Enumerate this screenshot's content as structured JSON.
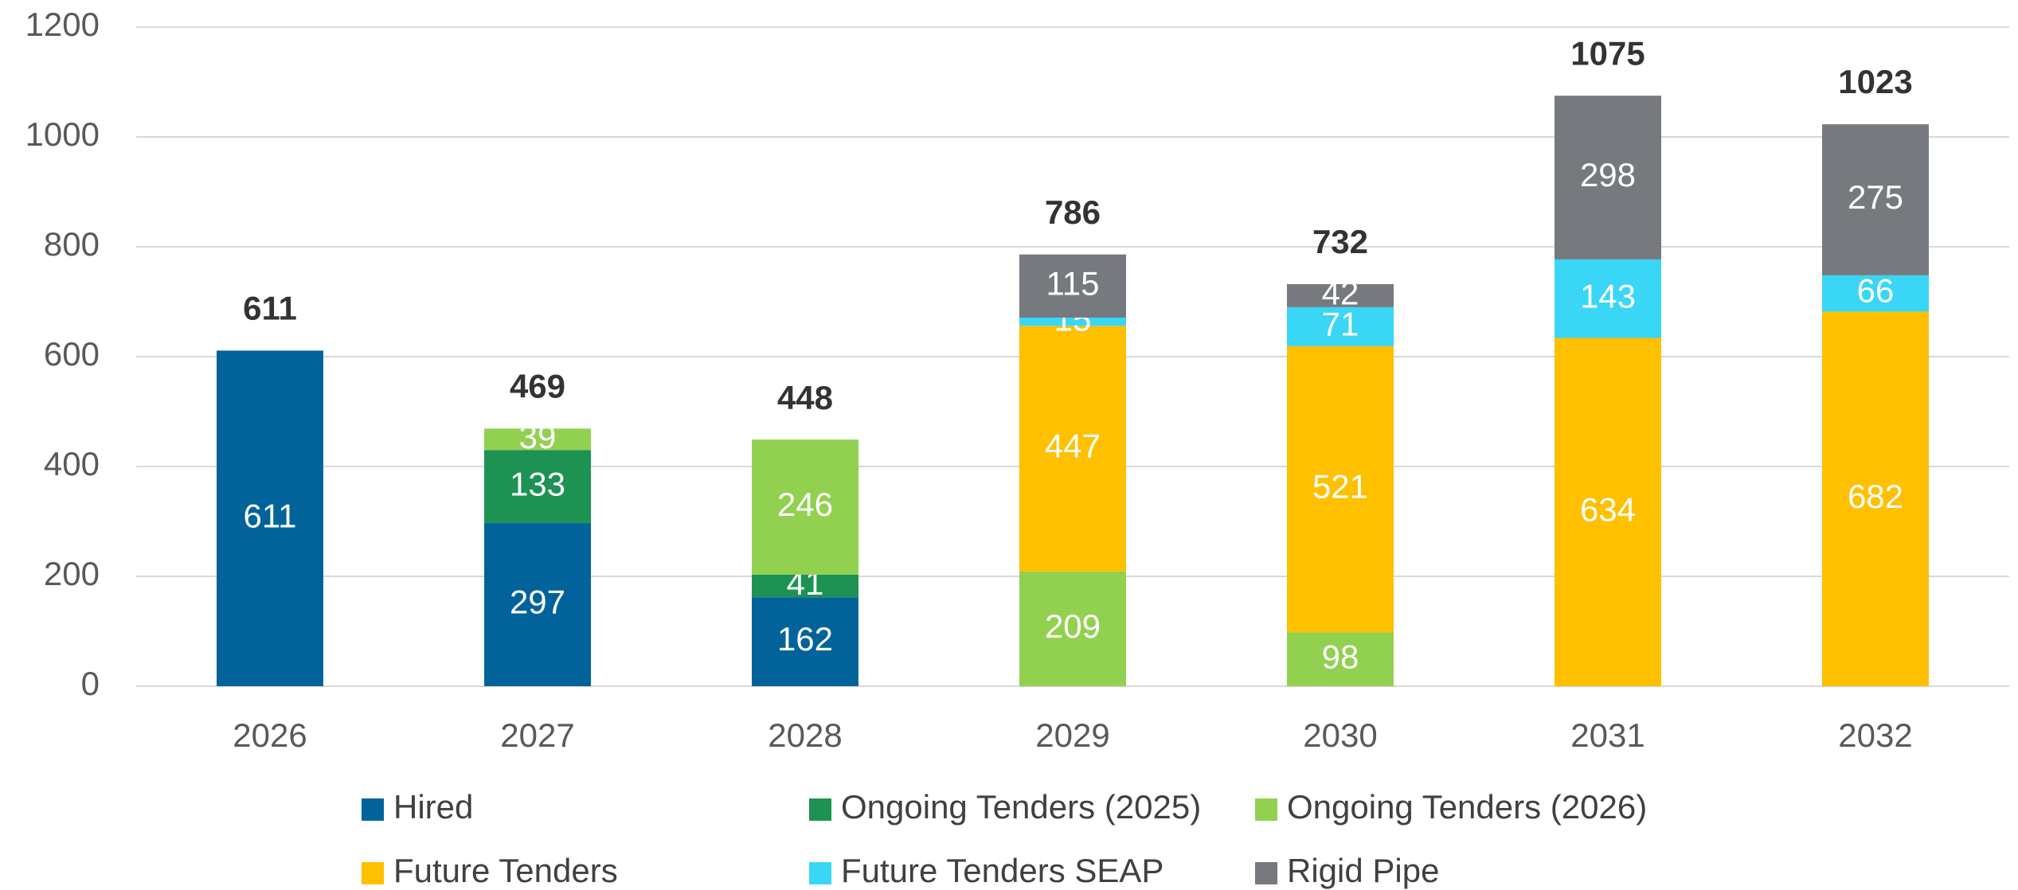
{
  "chart_data": {
    "type": "stacked_bar",
    "categories": [
      "2026",
      "2027",
      "2028",
      "2029",
      "2030",
      "2031",
      "2032"
    ],
    "series": [
      {
        "name": "Hired",
        "color": "#02639b",
        "values": [
          611,
          297,
          162,
          null,
          null,
          null,
          null
        ]
      },
      {
        "name": "Ongoing Tenders (2025)",
        "color": "#1d9253",
        "values": [
          null,
          133,
          41,
          null,
          null,
          null,
          null
        ]
      },
      {
        "name": "Ongoing Tenders (2026)",
        "color": "#92d050",
        "values": [
          null,
          39,
          246,
          209,
          98,
          null,
          null
        ]
      },
      {
        "name": "Future Tenders",
        "color": "#ffc000",
        "values": [
          null,
          null,
          null,
          447,
          521,
          634,
          682
        ]
      },
      {
        "name": "Future Tenders SEAP",
        "color": "#3ad6f6",
        "values": [
          null,
          null,
          null,
          15,
          71,
          143,
          66
        ]
      },
      {
        "name": "Rigid Pipe",
        "color": "#767a7f",
        "values": [
          null,
          null,
          null,
          115,
          42,
          298,
          275
        ]
      }
    ],
    "totals": [
      611,
      469,
      448,
      786,
      732,
      1075,
      1023
    ],
    "ylim": [
      0,
      1200
    ],
    "yticks": [
      0,
      200,
      400,
      600,
      800,
      1000,
      1200
    ],
    "grid": true,
    "legend": "bottom"
  }
}
